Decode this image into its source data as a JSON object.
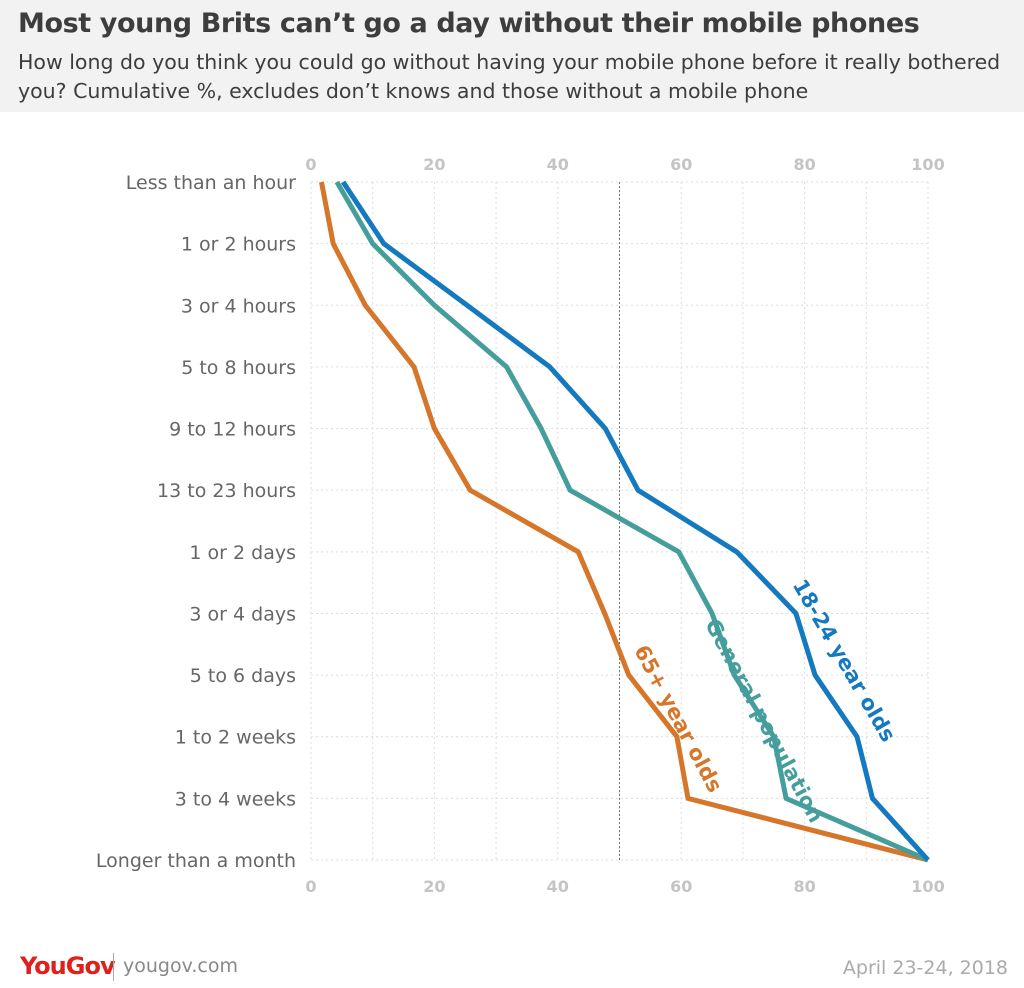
{
  "header": {
    "title": "Most young Brits can’t go a day without their mobile phones",
    "subtitle": "How long do you think you could go without having your mobile phone before it really bothered you? Cumulative %, excludes don’t knows and those without a mobile phone"
  },
  "chart_data": {
    "type": "line",
    "orientation": "horizontal-values",
    "categories": [
      "Less than an hour",
      "1 or 2 hours",
      "3 or 4 hours",
      "5 to 8 hours",
      "9 to 12 hours",
      "13 to 23 hours",
      "1 or 2 days",
      "3 or 4 days",
      "5 to 6 days",
      "1 to 2 weeks",
      "3 to 4 weeks",
      "Longer than a month"
    ],
    "xlim": [
      0,
      100
    ],
    "x_ticks": [
      0,
      20,
      40,
      60,
      80,
      100
    ],
    "grid": true,
    "reference_line": 50,
    "series": [
      {
        "name": "65+ year olds",
        "color": "#d5762a",
        "values": [
          1.7,
          3.6,
          8.8,
          16.7,
          20,
          25.8,
          43.3,
          47.6,
          51.5,
          59.3,
          61.1,
          100
        ]
      },
      {
        "name": "General population",
        "color": "#459e9c",
        "values": [
          4.2,
          10,
          20,
          31.7,
          37.3,
          42,
          59.6,
          65,
          68.6,
          75,
          77,
          100
        ]
      },
      {
        "name": "18-24 year olds",
        "color": "#1579bf",
        "values": [
          5.2,
          11.8,
          25.3,
          38.7,
          47.7,
          53,
          69,
          78.6,
          81.7,
          88.5,
          91,
          100
        ]
      }
    ]
  },
  "footer": {
    "logo": "YouGov",
    "url": "yougov.com",
    "date": "April 23-24, 2018"
  }
}
